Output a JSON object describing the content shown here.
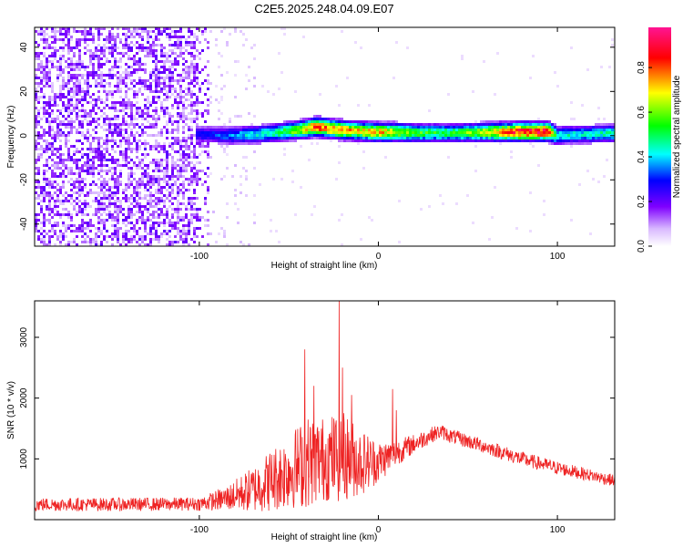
{
  "title": "C2E5.2025.248.04.09.E07",
  "chart_data": [
    {
      "type": "heatmap",
      "name": "spectrogram",
      "xlabel": "Height of straight line (km)",
      "ylabel": "Frequency (Hz)",
      "xlim": [
        -192,
        132
      ],
      "ylim": [
        -50,
        49
      ],
      "xticks": [
        -100,
        0,
        100
      ],
      "xtick_labels": [
        "-100",
        "0",
        "100"
      ],
      "yticks": [
        -40,
        -20,
        0,
        20,
        40
      ],
      "ytick_labels": [
        "-40",
        "-20",
        "0",
        "20",
        "40"
      ],
      "colorbar": {
        "label": "Normalized spectral amplitude",
        "range": [
          0.0,
          0.98
        ],
        "ticks": [
          0.0,
          0.2,
          0.4,
          0.6,
          0.8
        ],
        "tick_labels": [
          "0.0",
          "0.2",
          "0.4",
          "0.6",
          "0.8"
        ],
        "colormap": [
          "#ffffff",
          "#7f00ff",
          "#0000ff",
          "#00ffff",
          "#00ff00",
          "#ffff00",
          "#ff0000",
          "#ff1493"
        ]
      },
      "band": {
        "x": [
          -100,
          -80,
          -60,
          -50,
          -40,
          -35,
          -30,
          -20,
          -10,
          0,
          10,
          20,
          40,
          60,
          80,
          95,
          100,
          110,
          132
        ],
        "center_freq": [
          0.5,
          0.0,
          1.0,
          2.0,
          3.0,
          4.0,
          3.5,
          2.5,
          2.0,
          1.5,
          1.5,
          1.2,
          1.2,
          1.5,
          1.8,
          1.8,
          0.0,
          0.5,
          1.0
        ],
        "peak_amplitude": [
          0.3,
          0.4,
          0.5,
          0.6,
          0.75,
          0.9,
          0.85,
          0.8,
          0.75,
          0.8,
          0.7,
          0.6,
          0.55,
          0.7,
          0.95,
          0.95,
          0.5,
          0.45,
          0.5
        ]
      }
    },
    {
      "type": "line",
      "name": "snr",
      "xlabel": "Height of straight line (km)",
      "ylabel": "SNR (10 * v/v)",
      "xlim": [
        -192,
        132
      ],
      "ylim": [
        0,
        3600
      ],
      "xticks": [
        -100,
        0,
        100
      ],
      "xtick_labels": [
        "-100",
        "0",
        "100"
      ],
      "yticks": [
        1000,
        2000,
        3000
      ],
      "ytick_labels": [
        "1000",
        "2000",
        "3000"
      ],
      "color": "#ee2222",
      "envelope": {
        "x": [
          -192,
          -140,
          -100,
          -85,
          -70,
          -60,
          -50,
          -40,
          -30,
          -20,
          -10,
          0,
          10,
          20,
          30,
          35,
          40,
          60,
          80,
          100,
          120,
          132
        ],
        "center": [
          250,
          250,
          260,
          350,
          500,
          650,
          800,
          950,
          1000,
          1050,
          950,
          950,
          1100,
          1250,
          1400,
          1450,
          1380,
          1200,
          1000,
          850,
          720,
          640
        ],
        "spread": [
          110,
          110,
          110,
          200,
          380,
          520,
          620,
          760,
          700,
          760,
          560,
          350,
          220,
          160,
          130,
          120,
          120,
          120,
          120,
          110,
          100,
          100
        ]
      },
      "spikes": [
        {
          "x": -41,
          "y": 2800
        },
        {
          "x": -36,
          "y": 2200
        },
        {
          "x": -22,
          "y": 3600
        },
        {
          "x": -20,
          "y": 2500
        },
        {
          "x": -15,
          "y": 2050
        },
        {
          "x": 8,
          "y": 2150
        },
        {
          "x": 10,
          "y": 1800
        }
      ]
    }
  ]
}
